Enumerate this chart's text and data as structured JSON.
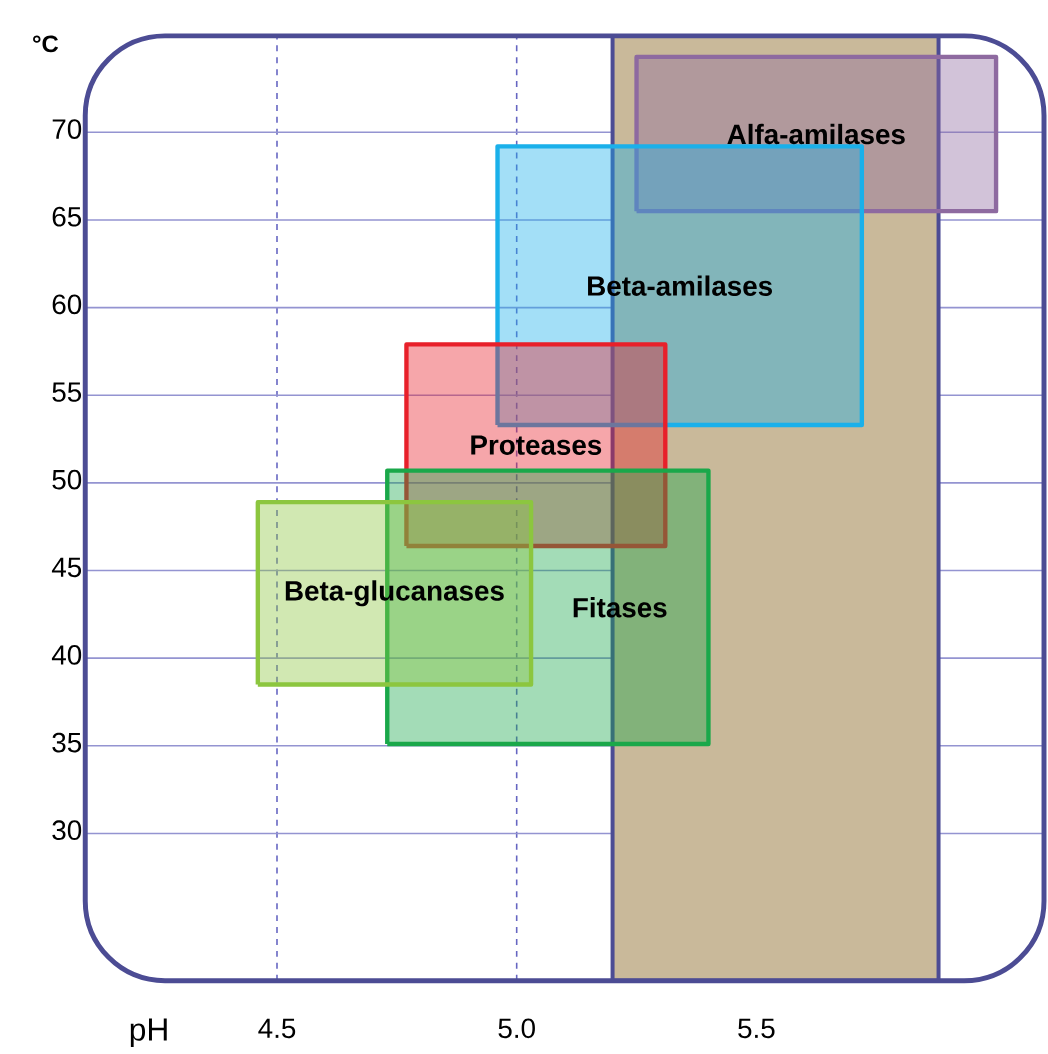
{
  "chart_data": {
    "type": "area",
    "xlabel": "pH",
    "ylabel": "°C",
    "xlim": [
      4.1,
      6.1
    ],
    "ylim": [
      21.6,
      75.5
    ],
    "xticks": [
      4.5,
      {
        "value": 5.0,
        "label": "5.0"
      },
      5.5
    ],
    "yticks": [
      30,
      35,
      40,
      45,
      50,
      55,
      60,
      65,
      70
    ],
    "grid": true,
    "bands": [
      {
        "axis": "x",
        "from": 5.2,
        "to": 5.88,
        "color": "#c9b99a"
      }
    ],
    "series": [
      {
        "name": "Alfa-amilases",
        "color": "#8e6aa0",
        "x": [
          5.25,
          6.0,
          6.0,
          5.25,
          5.25
        ],
        "values": [
          65.5,
          65.5,
          74.3,
          74.3,
          65.5
        ]
      },
      {
        "name": "Beta-amilases",
        "color": "#1ab0ea",
        "x": [
          4.96,
          5.72,
          5.72,
          4.96,
          4.96
        ],
        "values": [
          53.3,
          53.3,
          69.2,
          69.2,
          53.3
        ]
      },
      {
        "name": "Proteases",
        "color": "#e8202a",
        "x": [
          4.77,
          5.31,
          5.31,
          4.77,
          4.77
        ],
        "values": [
          46.4,
          46.4,
          57.9,
          57.9,
          46.4
        ]
      },
      {
        "name": "Fitases",
        "color": "#1aa84a",
        "x": [
          4.73,
          5.4,
          5.4,
          4.73,
          4.73
        ],
        "values": [
          35.1,
          35.1,
          50.7,
          50.7,
          35.1
        ]
      },
      {
        "name": "Beta-glucanases",
        "color": "#8cc63f",
        "x": [
          4.46,
          5.03,
          5.03,
          4.46,
          4.46
        ],
        "values": [
          38.5,
          38.5,
          48.9,
          48.9,
          38.5
        ]
      }
    ]
  }
}
